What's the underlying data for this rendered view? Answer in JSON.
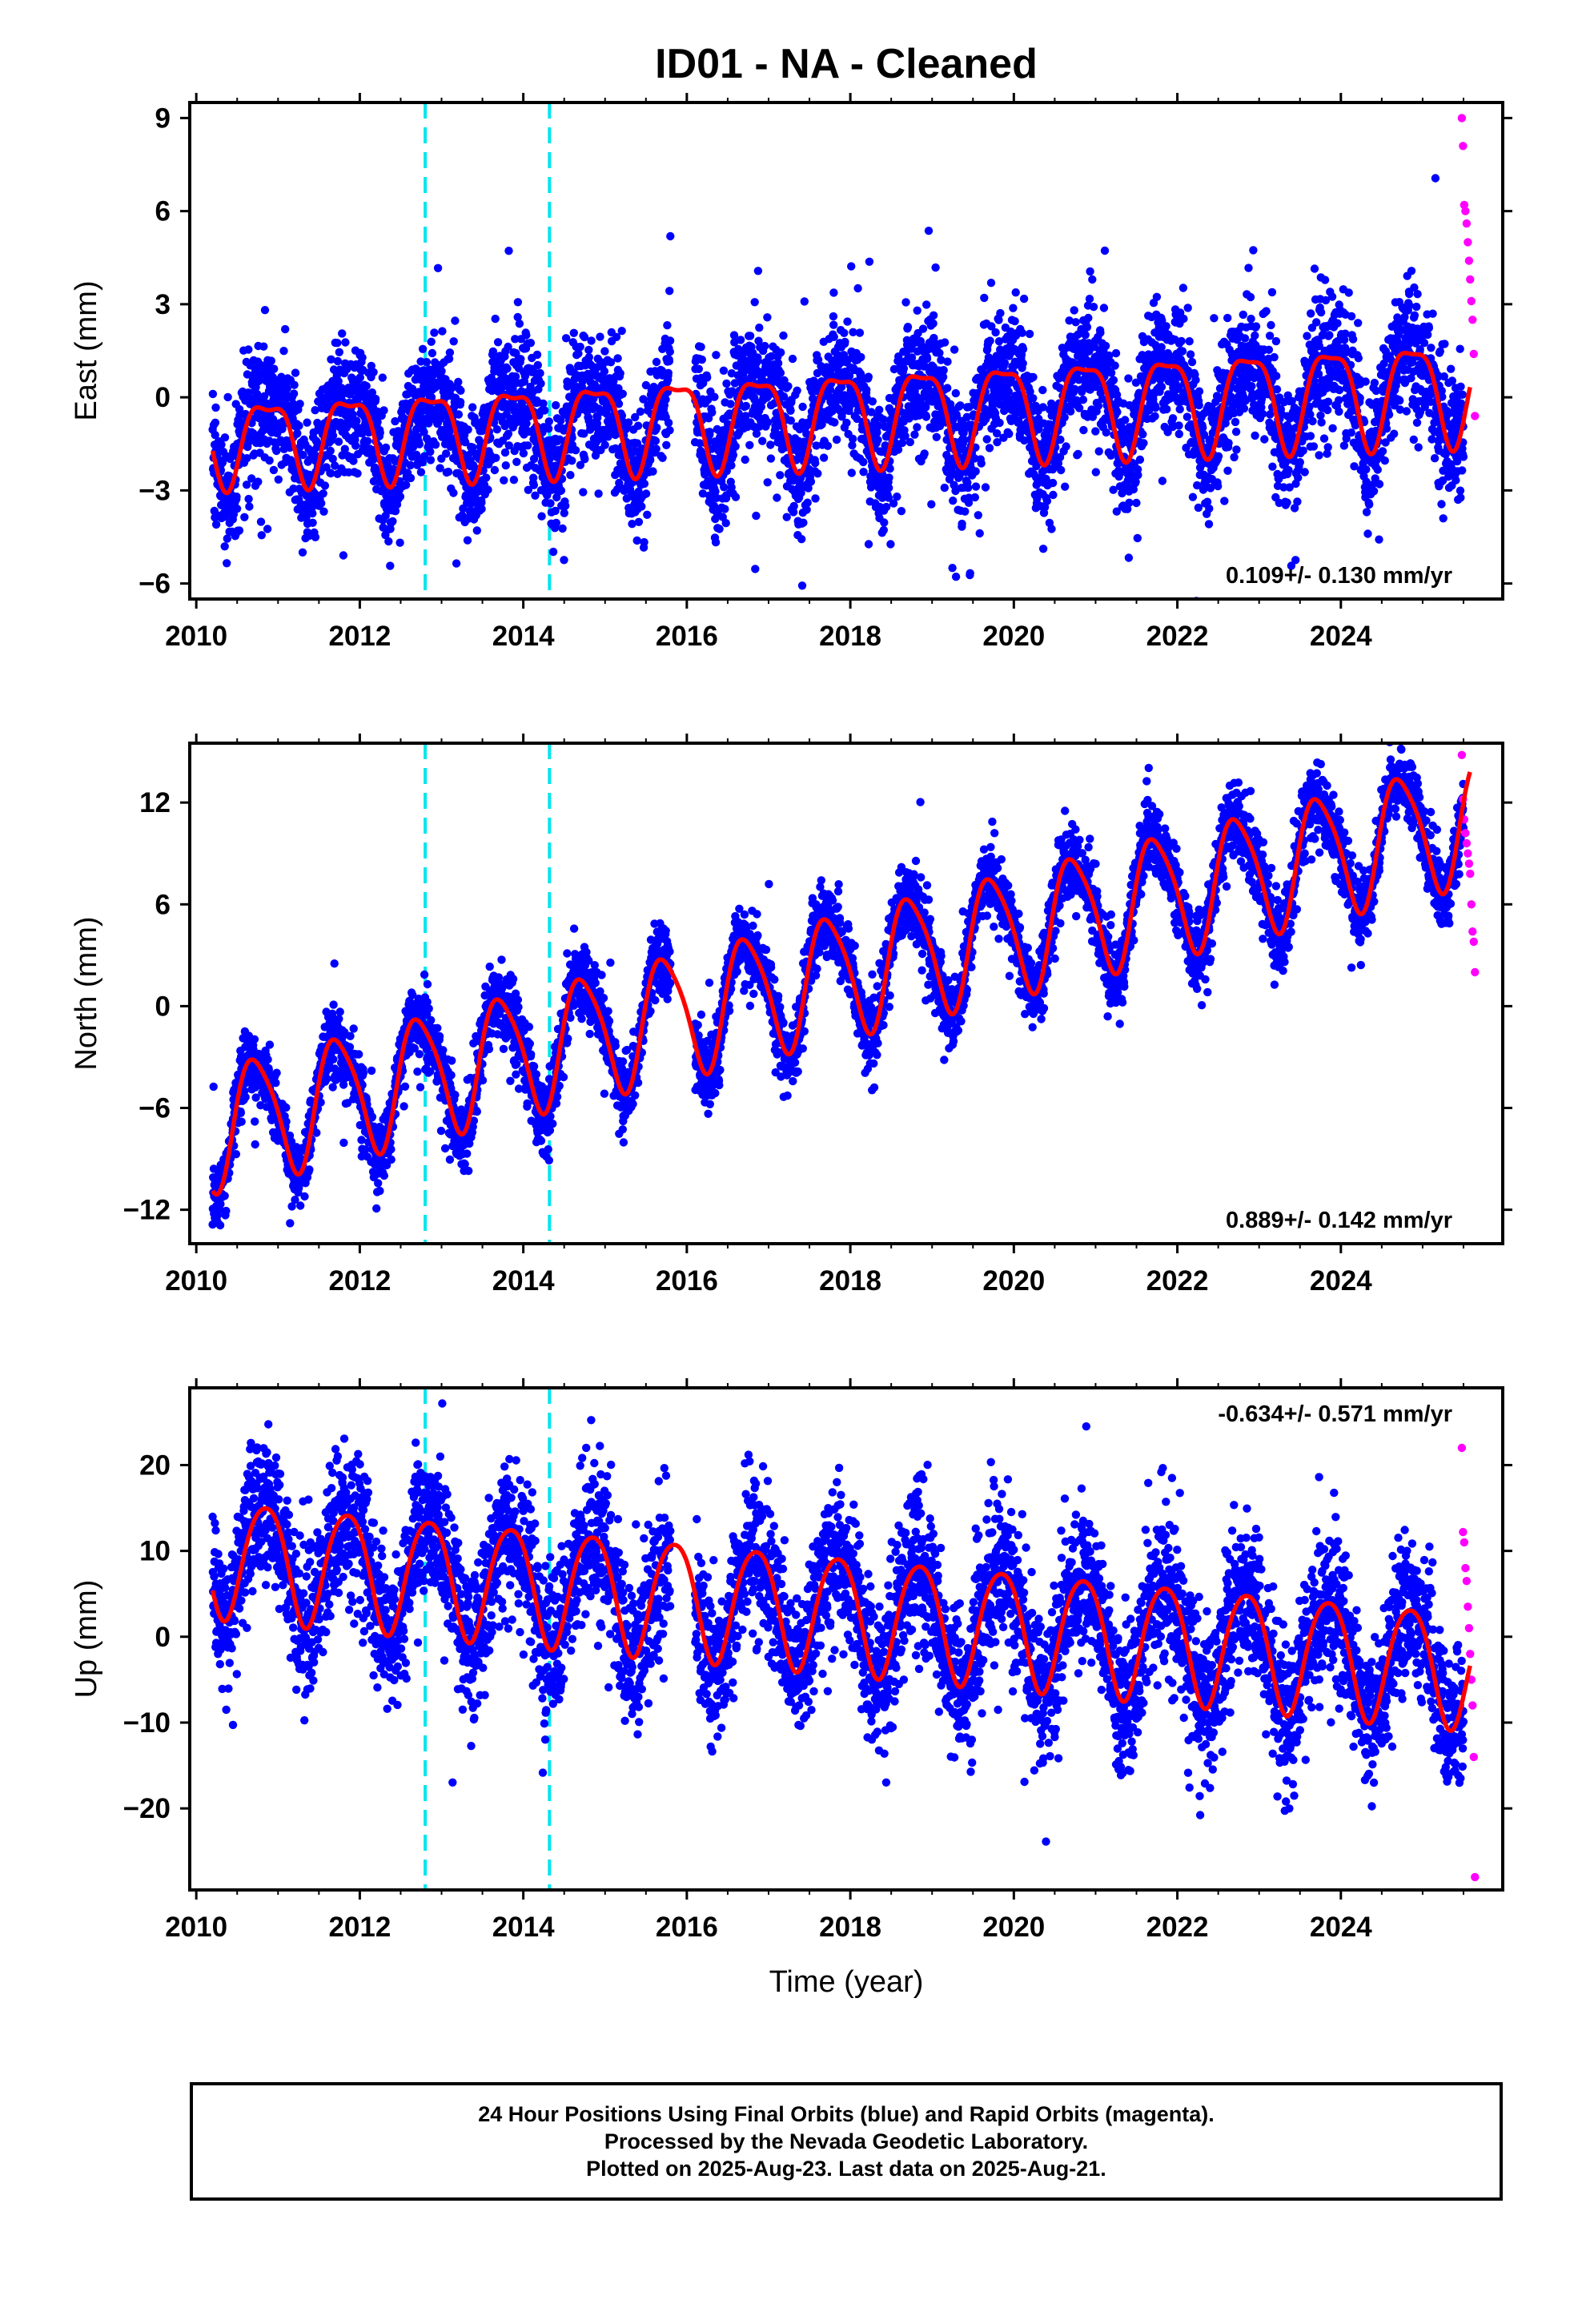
{
  "title": "ID01  - NA - Cleaned",
  "xlabel": "Time (year)",
  "footer": {
    "line1": "24 Hour Positions Using Final Orbits (blue) and Rapid Orbits (magenta).",
    "line2": "Processed by the Nevada Geodetic Laboratory.",
    "line3": "Plotted on 2025-Aug-23. Last data on 2025-Aug-21."
  },
  "colors": {
    "final_orbits": "#0000ff",
    "rapid_orbits": "#ff00ff",
    "model_fit": "#ff0000",
    "equipment_change": "#00e5ee"
  },
  "chart_data": [
    {
      "type": "scatter",
      "ylabel": "East (mm)",
      "xlim": [
        2009.92,
        2025.98
      ],
      "ylim": [
        -6.5,
        9.5
      ],
      "xticks": [
        2010,
        2012,
        2014,
        2016,
        2018,
        2020,
        2022,
        2024
      ],
      "yticks": [
        -6,
        -3,
        0,
        3,
        6,
        9
      ],
      "ytick_labels": [
        "−6",
        "−3",
        "0",
        "3",
        "6",
        "9"
      ],
      "rate_label": "0.109+/- 0.130 mm/yr",
      "rate_position": "bottom-right",
      "vlines": [
        2012.8,
        2014.32
      ],
      "data_gap": [
        2015.8,
        2016.1
      ],
      "final_span": [
        2010.2,
        2025.5
      ],
      "rapid_span": [
        2025.48,
        2025.64
      ],
      "model": {
        "offset": -1.35,
        "trend": 0.109,
        "t0": 2010.2,
        "amp": 1.3,
        "amp_growth": 0.02,
        "phase": 2.4,
        "semi_amp": 0.45,
        "semi_phase": 0.0,
        "noise_sd": 1.0,
        "outlier_sd": 2.2
      },
      "rapid_values": [
        9.0,
        8.1,
        6.2,
        6.0,
        5.6,
        5.0,
        4.4,
        3.8,
        3.1,
        2.5,
        1.4,
        -0.6
      ],
      "series": [
        {
          "name": "Final Orbits",
          "color": "#0000ff",
          "role": "daily positions"
        },
        {
          "name": "Rapid Orbits",
          "color": "#ff00ff",
          "role": "daily positions"
        },
        {
          "name": "Model fit",
          "color": "#ff0000",
          "role": "seasonal + trend model"
        }
      ]
    },
    {
      "type": "scatter",
      "ylabel": "North (mm)",
      "xlim": [
        2009.92,
        2025.98
      ],
      "ylim": [
        -14,
        15.5
      ],
      "xticks": [
        2010,
        2012,
        2014,
        2016,
        2018,
        2020,
        2022,
        2024
      ],
      "yticks": [
        -12,
        -6,
        0,
        6,
        12
      ],
      "ytick_labels": [
        "−12",
        "−6",
        "0",
        "6",
        "12"
      ],
      "rate_label": "0.889+/- 0.142 mm/yr",
      "rate_position": "bottom-right",
      "vlines": [
        2012.8,
        2014.32
      ],
      "data_gap": [
        2015.8,
        2016.1
      ],
      "final_span": [
        2010.2,
        2025.5
      ],
      "rapid_span": [
        2025.48,
        2025.64
      ],
      "model": {
        "offset": -7.1,
        "trend": 1.18,
        "t0": 2010.2,
        "amp": 3.6,
        "amp_growth": 0.0,
        "phase": 3.3,
        "semi_amp": 0.6,
        "semi_phase": 1.0,
        "noise_sd": 1.0,
        "outlier_sd": 2.2
      },
      "rapid_values": [
        14.8,
        12.2,
        11.0,
        10.2,
        9.6,
        9.0,
        8.4,
        7.8,
        6.0,
        4.4,
        3.8,
        2.0
      ],
      "series": [
        {
          "name": "Final Orbits",
          "color": "#0000ff",
          "role": "daily positions"
        },
        {
          "name": "Rapid Orbits",
          "color": "#ff00ff",
          "role": "daily positions"
        },
        {
          "name": "Model fit",
          "color": "#ff0000",
          "role": "seasonal + trend model"
        }
      ]
    },
    {
      "type": "scatter",
      "ylabel": "Up (mm)",
      "xlim": [
        2009.92,
        2025.98
      ],
      "ylim": [
        -29.5,
        29
      ],
      "xticks": [
        2010,
        2012,
        2014,
        2016,
        2018,
        2020,
        2022,
        2024
      ],
      "yticks": [
        -20,
        -10,
        0,
        10,
        20
      ],
      "ytick_labels": [
        "−20",
        "−10",
        "0",
        "10",
        "20"
      ],
      "rate_label": "-0.634+/- 0.571 mm/yr",
      "rate_position": "top-right",
      "vlines": [
        2012.8,
        2014.32
      ],
      "data_gap": [
        2015.8,
        2016.1
      ],
      "final_span": [
        2010.2,
        2025.5
      ],
      "rapid_span": [
        2025.48,
        2025.64
      ],
      "model": {
        "offset": 9.5,
        "trend": -0.85,
        "t0": 2010.2,
        "amp": 6.8,
        "amp_growth": 0.0,
        "phase": 2.55,
        "semi_amp": 0.8,
        "semi_phase": 0.5,
        "noise_sd": 4.3,
        "outlier_sd": 7.5
      },
      "rapid_values": [
        22.0,
        12.2,
        11.0,
        8.0,
        6.5,
        3.5,
        1.0,
        -2.0,
        -5.0,
        -8.0,
        -14.0,
        -28.0
      ],
      "series": [
        {
          "name": "Final Orbits",
          "color": "#0000ff",
          "role": "daily positions"
        },
        {
          "name": "Rapid Orbits",
          "color": "#ff00ff",
          "role": "daily positions"
        },
        {
          "name": "Model fit",
          "color": "#ff0000",
          "role": "seasonal + trend model"
        }
      ]
    }
  ]
}
